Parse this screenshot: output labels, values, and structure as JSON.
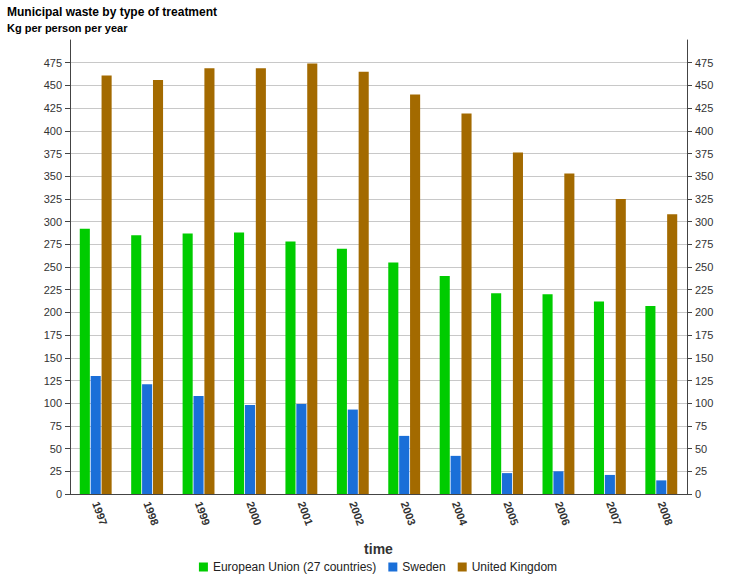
{
  "chart_data": {
    "type": "bar",
    "title": "Municipal waste by type of treatment",
    "subtitle": "Kg per person per year",
    "xlabel": "time",
    "categories": [
      "1997",
      "1998",
      "1999",
      "2000",
      "2001",
      "2002",
      "2003",
      "2004",
      "2005",
      "2006",
      "2007",
      "2008"
    ],
    "series": [
      {
        "name": "European Union (27 countries)",
        "color": "#00cc00",
        "values": [
          292,
          285,
          287,
          288,
          278,
          270,
          255,
          240,
          221,
          220,
          212,
          207
        ]
      },
      {
        "name": "Sweden",
        "color": "#1a6fd8",
        "values": [
          130,
          121,
          108,
          98,
          99,
          93,
          64,
          42,
          23,
          25,
          21,
          15
        ]
      },
      {
        "name": "United Kingdom",
        "color": "#a36a00",
        "values": [
          461,
          456,
          469,
          469,
          474,
          465,
          440,
          419,
          376,
          353,
          325,
          308
        ]
      }
    ],
    "ylim": [
      0,
      500
    ],
    "yticks": [
      0,
      25,
      50,
      75,
      100,
      125,
      150,
      175,
      200,
      225,
      250,
      275,
      300,
      325,
      350,
      375,
      400,
      425,
      450,
      475
    ],
    "y2lim": [
      0,
      500
    ],
    "y2ticks": [
      0,
      25,
      50,
      75,
      100,
      125,
      150,
      175,
      200,
      225,
      250,
      275,
      300,
      325,
      350,
      375,
      400,
      425,
      450,
      475
    ],
    "grid": true,
    "legend": "bottom"
  }
}
